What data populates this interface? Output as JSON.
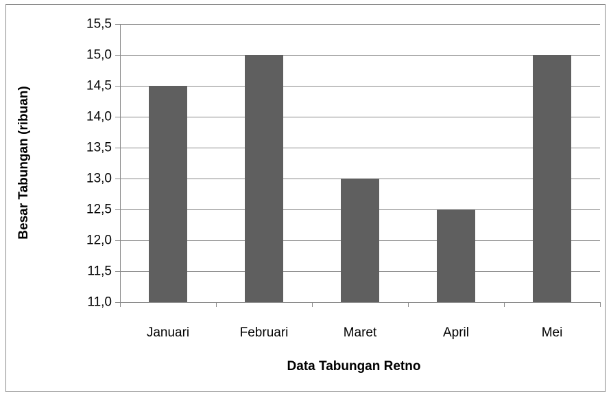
{
  "chart_data": {
    "type": "bar",
    "x_label": "Data Tabungan Retno",
    "y_label": "Besar Tabungan (ribuan)",
    "categories": [
      "Januari",
      "Februari",
      "Maret",
      "April",
      "Mei"
    ],
    "values": [
      14.5,
      15,
      13,
      12.5,
      15
    ],
    "color": "#5f5f5f",
    "ylim": [
      11,
      15.5
    ],
    "yticks": [
      {
        "value": 11,
        "label": "11,0"
      },
      {
        "value": 11.5,
        "label": "11,5"
      },
      {
        "value": 12,
        "label": "12,0"
      },
      {
        "value": 12.5,
        "label": "12,5"
      },
      {
        "value": 13,
        "label": "13,0"
      },
      {
        "value": 13.5,
        "label": "13,5"
      },
      {
        "value": 14,
        "label": "14,0"
      },
      {
        "value": 14.5,
        "label": "14,5"
      },
      {
        "value": 15,
        "label": "15,0"
      },
      {
        "value": 15.5,
        "label": "15,5"
      }
    ],
    "grid": true
  }
}
